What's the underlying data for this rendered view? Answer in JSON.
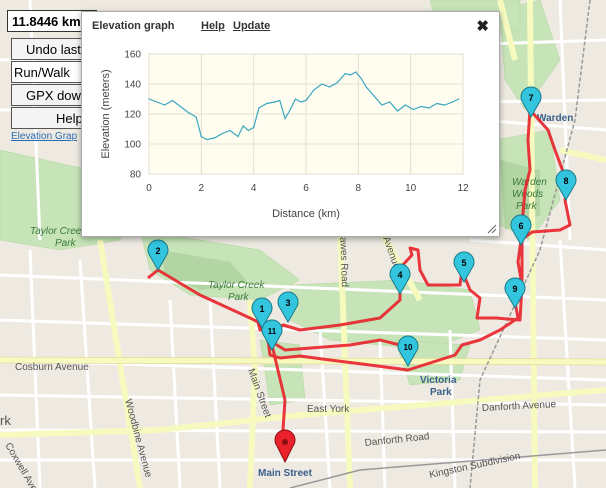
{
  "panel": {
    "distance": "11.8446 km",
    "undo_label": "Undo last p",
    "run_walk_value": "Run/Walk",
    "gpx_label": "GPX down",
    "help_label": "Help",
    "elevation_link": "Elevation Grap"
  },
  "dialog": {
    "title": "Elevation graph",
    "help_link": "Help",
    "update_link": "Update",
    "close_glyph": "✖"
  },
  "chart_data": {
    "type": "line",
    "xlabel": "Distance (km)",
    "ylabel": "Elevation (meters)",
    "xlim": [
      0,
      12
    ],
    "ylim": [
      80,
      160
    ],
    "x_ticks": [
      "0",
      "2",
      "4",
      "6",
      "8",
      "10",
      "12"
    ],
    "y_ticks": [
      "80",
      "100",
      "120",
      "140",
      "160"
    ],
    "series": [
      {
        "color": "#3aa6c0",
        "x": [
          0,
          0.3,
          0.6,
          0.9,
          1.2,
          1.5,
          1.8,
          2.0,
          2.2,
          2.5,
          2.8,
          3.1,
          3.4,
          3.6,
          3.8,
          4.0,
          4.2,
          4.5,
          4.8,
          5.0,
          5.2,
          5.4,
          5.6,
          5.8,
          6.0,
          6.3,
          6.6,
          6.9,
          7.2,
          7.5,
          7.7,
          7.9,
          8.1,
          8.3,
          8.6,
          8.9,
          9.2,
          9.5,
          9.8,
          10.1,
          10.4,
          10.7,
          11.0,
          11.3,
          11.6,
          11.84
        ],
        "y": [
          130,
          128,
          126,
          129,
          125,
          121,
          118,
          105,
          103,
          104,
          107,
          109,
          105,
          112,
          109,
          111,
          124,
          127,
          128,
          129,
          117,
          123,
          130,
          128,
          129,
          136,
          140,
          138,
          141,
          147,
          146,
          148,
          144,
          138,
          132,
          126,
          128,
          122,
          126,
          123,
          125,
          124,
          127,
          126,
          128,
          130
        ]
      }
    ]
  },
  "map": {
    "route_color": "#e8212a",
    "marker_color": "#33c4de",
    "markers": [
      "1",
      "2",
      "3",
      "4",
      "5",
      "6",
      "7",
      "8",
      "9",
      "10",
      "11"
    ],
    "end_marker_color": "#e8212a",
    "labels": {
      "taylor_creek_park_1": "Taylor Creek",
      "taylor_creek_park_1b": "Park",
      "taylor_creek_park_2": "Taylor Creek",
      "taylor_creek_park_2b": "Park",
      "victoria_park_1": "Victoria",
      "victoria_park_2": "Park",
      "warden": "Warden",
      "warden_woods_1": "Warden",
      "warden_woods_2": "Woods",
      "warden_woods_3": "Park",
      "main_street": "Main Street",
      "east_york": "East York",
      "cosburn": "Cosburn Avenue",
      "danforth_1": "Danforth Avenue",
      "danforth_2": "Danforth Road",
      "kingston": "Kingston Subdivision",
      "dawes": "Dawes Road",
      "main_st_road": "Main Street",
      "woodbine": "Woodbine Avenue",
      "coxwell": "Coxwell Avenue",
      "park_left": "rk",
      "avenue": "Avenue"
    }
  }
}
